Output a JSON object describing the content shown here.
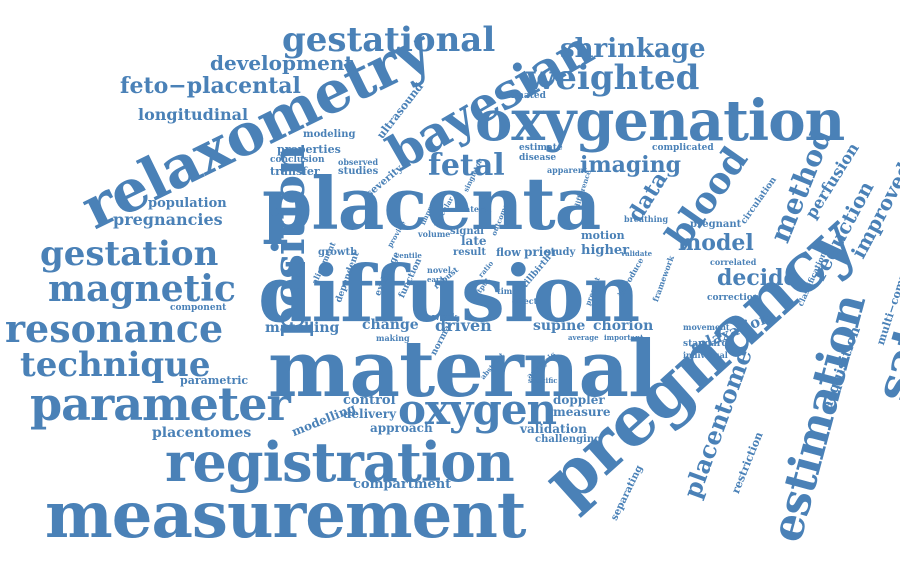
{
  "accent_color": "#4a81b7",
  "words": [
    {
      "text": "diffusion"
    },
    {
      "text": "maternal"
    },
    {
      "text": "placenta"
    },
    {
      "text": "pregnancy"
    },
    {
      "text": "measurement"
    },
    {
      "text": "registration"
    },
    {
      "text": "relaxometry"
    },
    {
      "text": "oxygenation"
    },
    {
      "text": "position"
    },
    {
      "text": "bayesian"
    },
    {
      "text": "parameter"
    },
    {
      "text": "resonance"
    },
    {
      "text": "oxygen"
    },
    {
      "text": "magnetic"
    },
    {
      "text": "technique"
    },
    {
      "text": "gestation"
    },
    {
      "text": "estimation"
    },
    {
      "text": "saturation"
    },
    {
      "text": "blood"
    },
    {
      "text": "gestational"
    },
    {
      "text": "weighted"
    },
    {
      "text": "fetal"
    },
    {
      "text": "shrinkage"
    },
    {
      "text": "method"
    },
    {
      "text": "feto−placental"
    },
    {
      "text": "placentome"
    },
    {
      "text": "development"
    },
    {
      "text": "imaging"
    },
    {
      "text": "model"
    },
    {
      "text": "decide"
    },
    {
      "text": "data"
    },
    {
      "text": "reduction"
    },
    {
      "text": "improved"
    },
    {
      "text": "longitudinal"
    },
    {
      "text": "pregnancies"
    },
    {
      "text": "population"
    },
    {
      "text": "placentomes"
    },
    {
      "text": "matching"
    },
    {
      "text": "change"
    },
    {
      "text": "driven"
    },
    {
      "text": "supine"
    },
    {
      "text": "chorion"
    },
    {
      "text": "relaxation"
    },
    {
      "text": "perfusion"
    },
    {
      "text": "acquisition"
    },
    {
      "text": "compartment"
    },
    {
      "text": "control"
    },
    {
      "text": "delivery"
    },
    {
      "text": "approach"
    },
    {
      "text": "modelling"
    },
    {
      "text": "validation"
    },
    {
      "text": "doppler"
    },
    {
      "text": "measure"
    },
    {
      "text": "challenging"
    },
    {
      "text": "restriction"
    },
    {
      "text": "separating"
    },
    {
      "text": "multi−compartment"
    },
    {
      "text": "parametric"
    },
    {
      "text": "component"
    },
    {
      "text": "ultrasound"
    },
    {
      "text": "modeling"
    },
    {
      "text": "properties"
    },
    {
      "text": "conclusion"
    },
    {
      "text": "transfer"
    },
    {
      "text": "observed"
    },
    {
      "text": "studies"
    },
    {
      "text": "estimated"
    },
    {
      "text": "estimate"
    },
    {
      "text": "disease"
    },
    {
      "text": "complicated"
    },
    {
      "text": "apparent"
    },
    {
      "text": "severity"
    },
    {
      "text": "pregnant"
    },
    {
      "text": "circulation"
    },
    {
      "text": "correlated"
    },
    {
      "text": "correction"
    },
    {
      "text": "movement"
    },
    {
      "text": "standard"
    },
    {
      "text": "individual"
    },
    {
      "text": "classification"
    },
    {
      "text": "growth"
    },
    {
      "text": "result"
    },
    {
      "text": "flow"
    },
    {
      "text": "prior"
    },
    {
      "text": "study"
    },
    {
      "text": "late"
    },
    {
      "text": "higher"
    },
    {
      "text": "motion"
    },
    {
      "text": "signal"
    },
    {
      "text": "volume"
    },
    {
      "text": "lateral"
    },
    {
      "text": "breathing"
    },
    {
      "text": "framework"
    },
    {
      "text": "introduce"
    },
    {
      "text": "stillbirth"
    },
    {
      "text": "analysis"
    },
    {
      "text": "specific"
    },
    {
      "text": "abstract"
    },
    {
      "text": "normal"
    },
    {
      "text": "making"
    },
    {
      "text": "week"
    },
    {
      "text": "dependent"
    },
    {
      "text": "alignment"
    },
    {
      "text": "exchange"
    },
    {
      "text": "function"
    },
    {
      "text": "novel"
    },
    {
      "text": "early"
    },
    {
      "text": "robust"
    },
    {
      "text": "time"
    },
    {
      "text": "effect"
    },
    {
      "text": "output"
    },
    {
      "text": "present"
    },
    {
      "text": "average"
    },
    {
      "text": "important"
    },
    {
      "text": "validate"
    },
    {
      "text": "centile"
    },
    {
      "text": "provide"
    },
    {
      "text": "difference"
    },
    {
      "text": "improve"
    },
    {
      "text": "outcome"
    },
    {
      "text": "vascular"
    },
    {
      "text": "singleton"
    },
    {
      "text": "ratio"
    }
  ]
}
